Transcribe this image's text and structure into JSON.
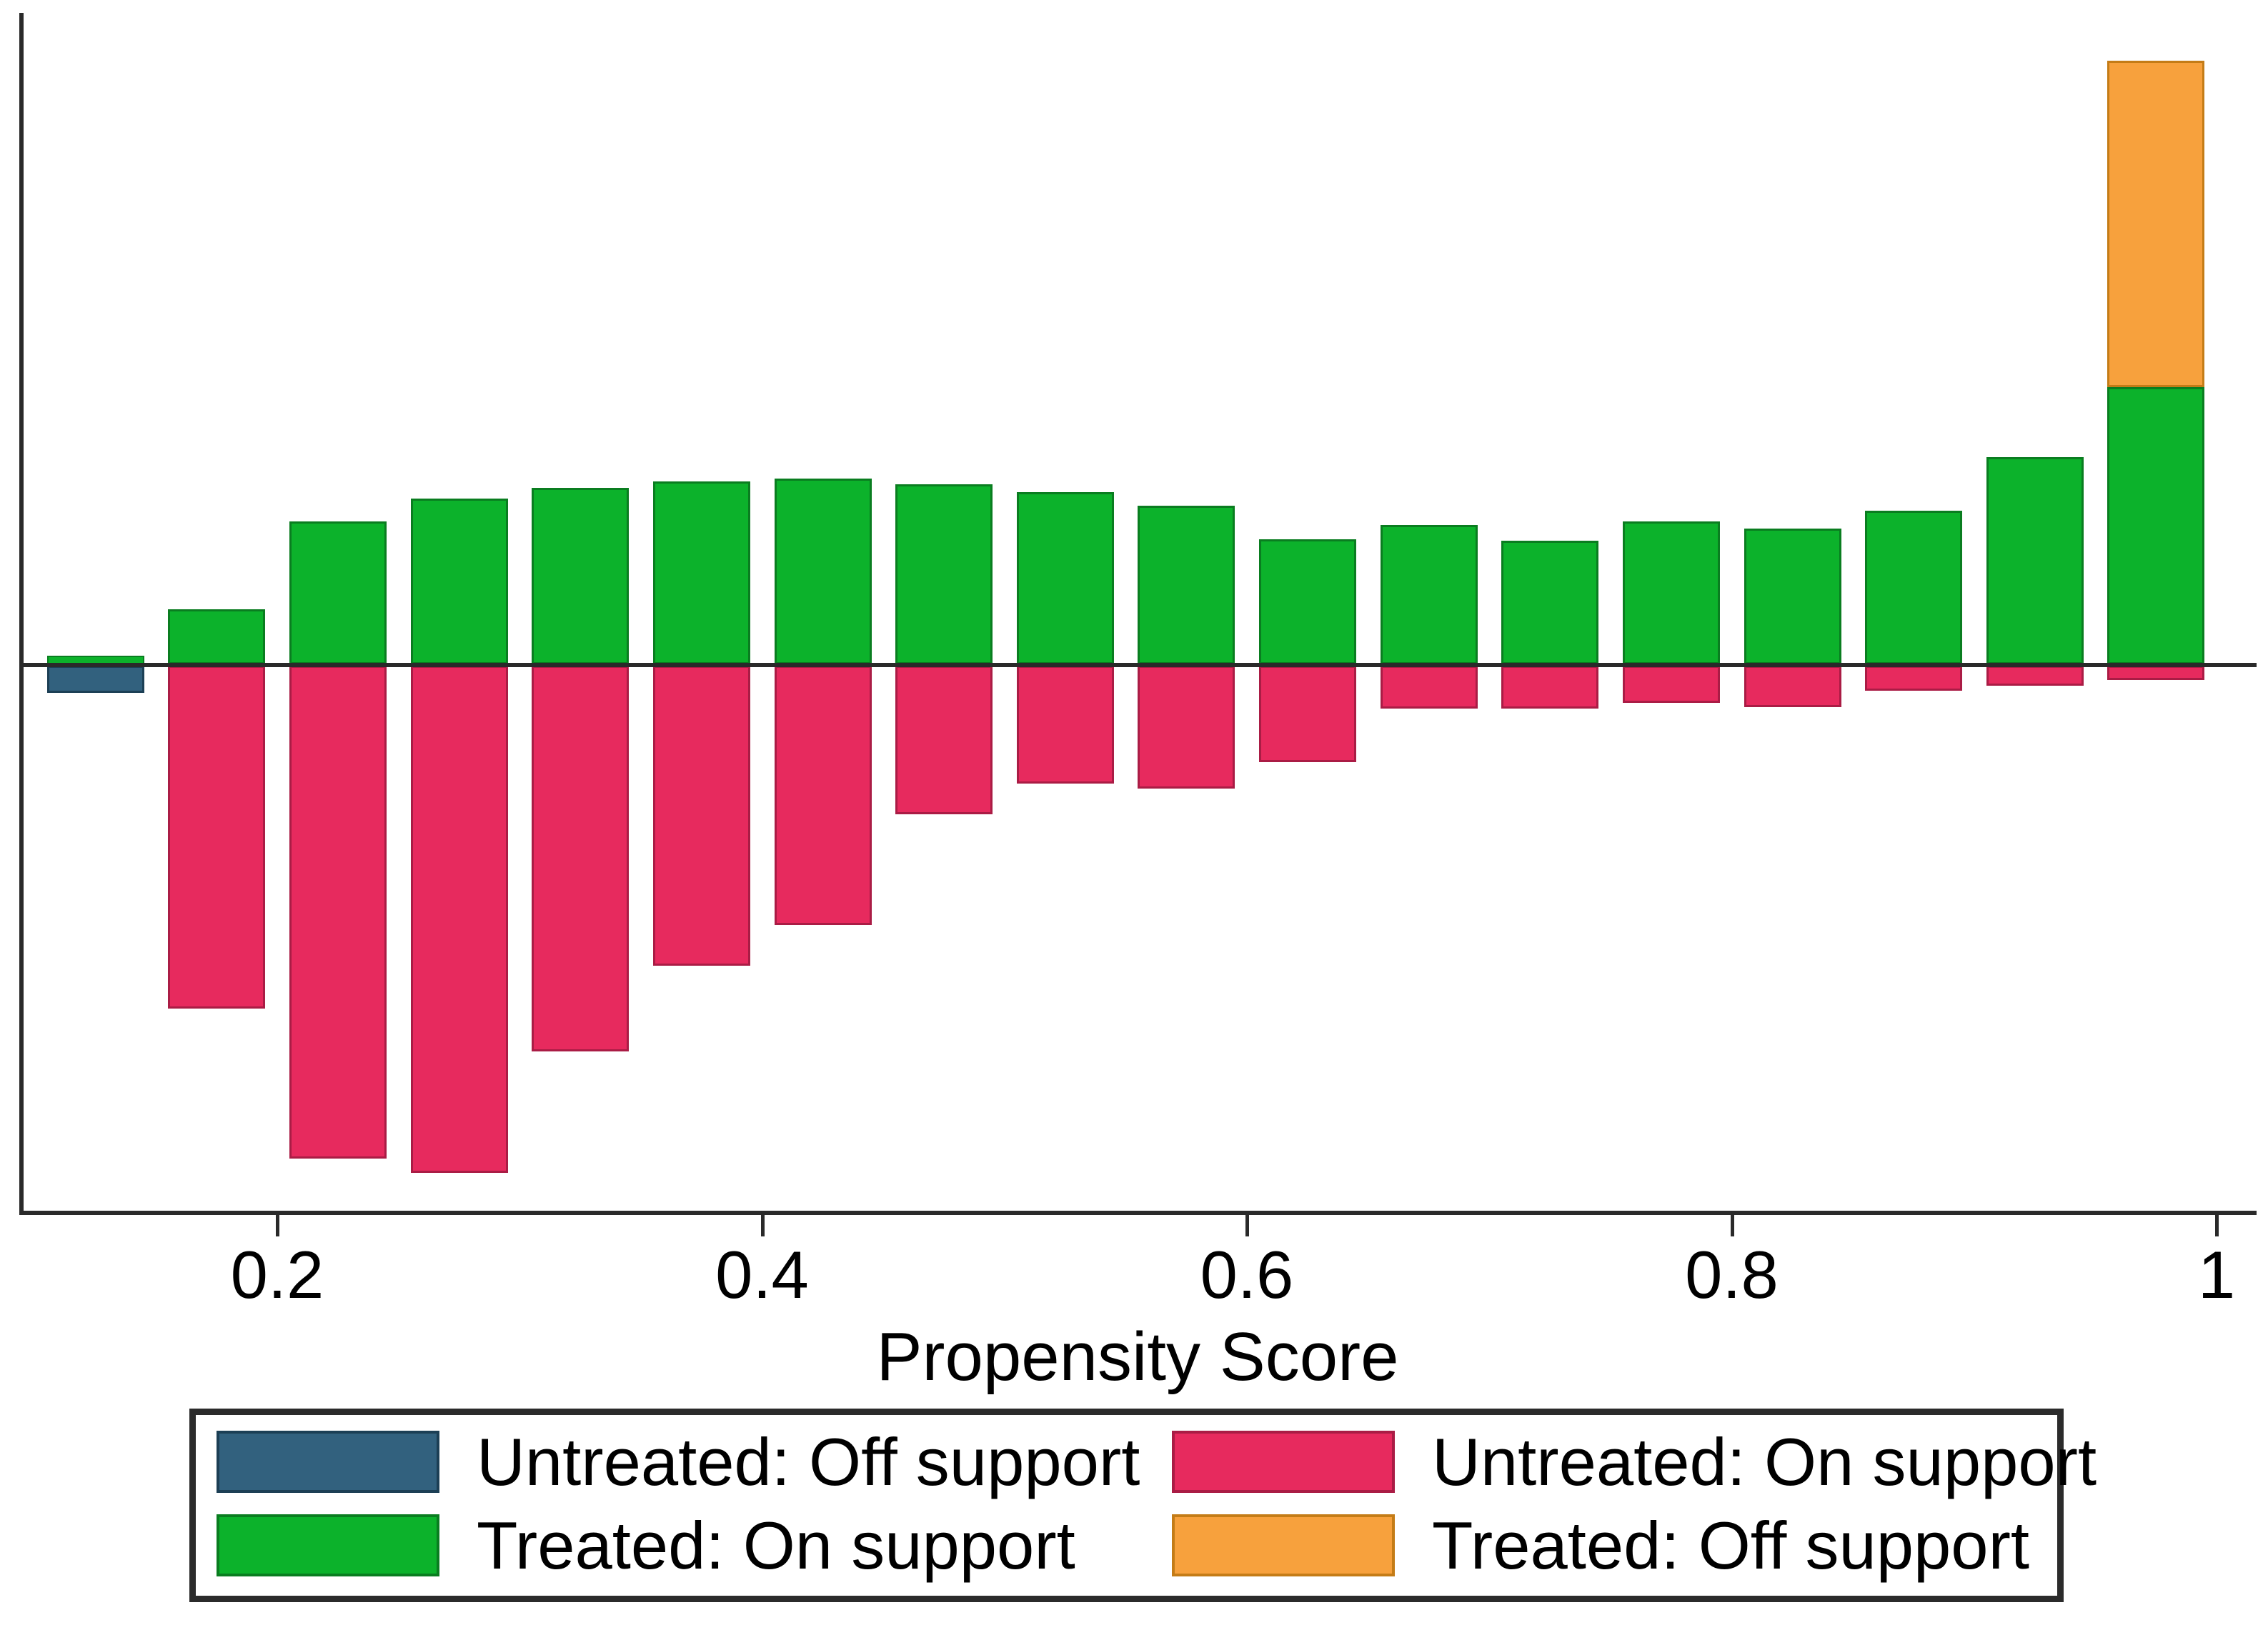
{
  "figure": {
    "xlabel": "Propensity Score"
  },
  "legend": {
    "items": [
      {
        "key": "untreated_off",
        "label": "Untreated: Off support"
      },
      {
        "key": "treated_on",
        "label": "Treated: On support"
      },
      {
        "key": "untreated_on",
        "label": "Untreated: On support"
      },
      {
        "key": "treated_off",
        "label": "Treated: Off support"
      }
    ]
  },
  "colors": {
    "treated_on": "#0cb22b",
    "treated_on_edge": "#0a7d20",
    "untreated_on": "#e72a5e",
    "untreated_on_edge": "#aa1c45",
    "untreated_off": "#32617e",
    "untreated_off_edge": "#1c3f55",
    "treated_off": "#f7a13d",
    "treated_off_edge": "#c47c17",
    "axis": "#2a2a2a",
    "text": "#000000"
  },
  "chart_data": {
    "type": "bar",
    "subtype": "diverging propensity-score histogram (treated above axis, untreated below axis)",
    "title": "",
    "xlabel": "Propensity Score",
    "ylabel": "",
    "x_tick_values": [
      0.2,
      0.4,
      0.6,
      0.8,
      1
    ],
    "x_tick_labels": [
      "0.2",
      "0.4",
      "0.6",
      "0.8",
      "1"
    ],
    "bin_width": 0.05,
    "legend_position": "bottom",
    "units_note": "no numeric y axis shown; segment heights given in screenshot pixels",
    "bins": [
      {
        "x0": 0.1,
        "x1": 0.15,
        "treated_on": 12,
        "untreated_on": 0,
        "untreated_off": 38,
        "treated_off": 0
      },
      {
        "x0": 0.15,
        "x1": 0.2,
        "treated_on": 77,
        "untreated_on": 480,
        "untreated_off": 0,
        "treated_off": 0
      },
      {
        "x0": 0.2,
        "x1": 0.25,
        "treated_on": 200,
        "untreated_on": 690,
        "untreated_off": 0,
        "treated_off": 0
      },
      {
        "x0": 0.25,
        "x1": 0.3,
        "treated_on": 232,
        "untreated_on": 710,
        "untreated_off": 0,
        "treated_off": 0
      },
      {
        "x0": 0.3,
        "x1": 0.35,
        "treated_on": 247,
        "untreated_on": 540,
        "untreated_off": 0,
        "treated_off": 0
      },
      {
        "x0": 0.35,
        "x1": 0.4,
        "treated_on": 256,
        "untreated_on": 420,
        "untreated_off": 0,
        "treated_off": 0
      },
      {
        "x0": 0.4,
        "x1": 0.45,
        "treated_on": 260,
        "untreated_on": 363,
        "untreated_off": 0,
        "treated_off": 0
      },
      {
        "x0": 0.45,
        "x1": 0.5,
        "treated_on": 252,
        "untreated_on": 208,
        "untreated_off": 0,
        "treated_off": 0
      },
      {
        "x0": 0.5,
        "x1": 0.55,
        "treated_on": 241,
        "untreated_on": 165,
        "untreated_off": 0,
        "treated_off": 0
      },
      {
        "x0": 0.55,
        "x1": 0.6,
        "treated_on": 222,
        "untreated_on": 172,
        "untreated_off": 0,
        "treated_off": 0
      },
      {
        "x0": 0.6,
        "x1": 0.65,
        "treated_on": 175,
        "untreated_on": 135,
        "untreated_off": 0,
        "treated_off": 0
      },
      {
        "x0": 0.65,
        "x1": 0.7,
        "treated_on": 195,
        "untreated_on": 60,
        "untreated_off": 0,
        "treated_off": 0
      },
      {
        "x0": 0.7,
        "x1": 0.75,
        "treated_on": 173,
        "untreated_on": 60,
        "untreated_off": 0,
        "treated_off": 0
      },
      {
        "x0": 0.75,
        "x1": 0.8,
        "treated_on": 200,
        "untreated_on": 52,
        "untreated_off": 0,
        "treated_off": 0
      },
      {
        "x0": 0.8,
        "x1": 0.85,
        "treated_on": 190,
        "untreated_on": 58,
        "untreated_off": 0,
        "treated_off": 0
      },
      {
        "x0": 0.85,
        "x1": 0.9,
        "treated_on": 215,
        "untreated_on": 35,
        "untreated_off": 0,
        "treated_off": 0
      },
      {
        "x0": 0.9,
        "x1": 0.95,
        "treated_on": 290,
        "untreated_on": 28,
        "untreated_off": 0,
        "treated_off": 0
      },
      {
        "x0": 0.95,
        "x1": 1.0,
        "treated_on": 388,
        "untreated_on": 20,
        "untreated_off": 0,
        "treated_off": 457
      }
    ]
  }
}
